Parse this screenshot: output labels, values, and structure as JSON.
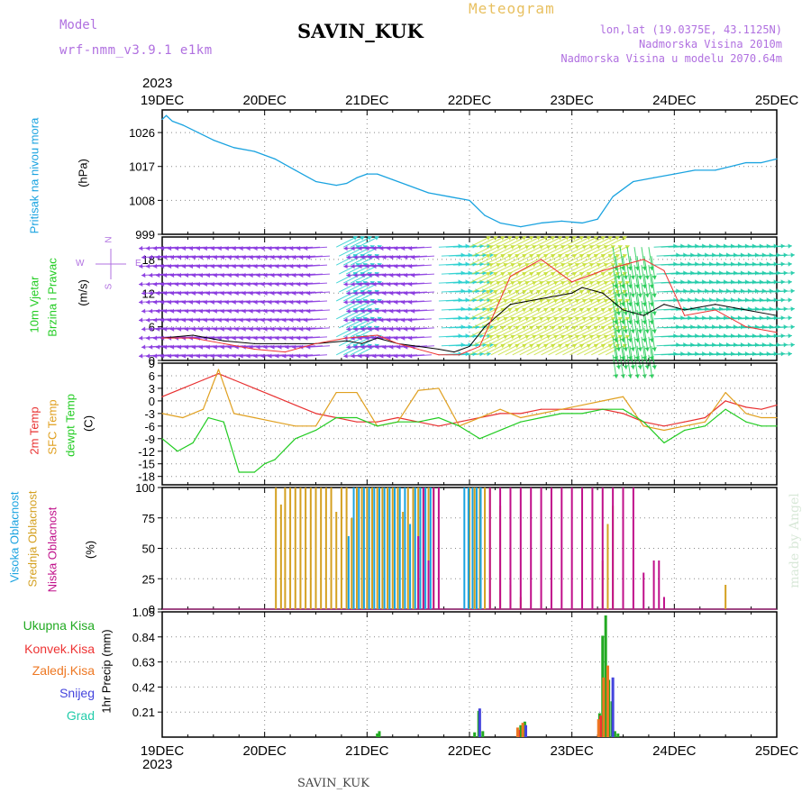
{
  "header": {
    "model_label": "Model",
    "model_name": "wrf-nmm_v3.9.1 e1km",
    "station": "SAVIN_KUK",
    "product": "Meteogram",
    "lonlat": "lon,lat (19.0375E, 43.1125N)",
    "altitude": "Nadmorska Visina 2010m",
    "model_altitude": "Nadmorska Visina u modelu 2070.64m",
    "footer_station": "SAVIN_KUK",
    "watermark": "made by Angel"
  },
  "colors": {
    "pressure": "#1aa3e0",
    "temp2m": "#e83030",
    "sfc": "#e0a020",
    "dewpt": "#22cc22",
    "high_cloud": "#1aa3e0",
    "mid_cloud": "#d4a020",
    "low_cloud": "#c0108a",
    "total_precip": "#22aa22",
    "conv_precip": "#ee3333",
    "frozen_precip": "#ee7722",
    "snow": "#4444dd",
    "hail": "#22ccaa",
    "wind_label": "#22cc22",
    "wind_compass": "#b070e0"
  },
  "chart_data": [
    {
      "id": "pressure",
      "type": "line",
      "ylabel_lines": [
        "Pritisak na nivou mora",
        "(hPa)"
      ],
      "ylim": [
        999,
        1032
      ],
      "yticks": [
        999,
        1008,
        1017,
        1026
      ],
      "x_unit": "days since 2023-12-19 00UTC",
      "series": [
        {
          "x": [
            0,
            0.04,
            0.1,
            0.2,
            0.35,
            0.5,
            0.7,
            0.9,
            1.1,
            1.3,
            1.5,
            1.7,
            1.8,
            1.9,
            2.0,
            2.1,
            2.25,
            2.4,
            2.6,
            2.8,
            3.0,
            3.15,
            3.3,
            3.5,
            3.7,
            3.9,
            4.1,
            4.25,
            4.4,
            4.6,
            4.8,
            5.0,
            5.2,
            5.4,
            5.55,
            5.7,
            5.85,
            6.0
          ],
          "values": [
            1029.5,
            1030.5,
            1029,
            1028,
            1026,
            1024,
            1022,
            1021,
            1019,
            1016,
            1013,
            1012,
            1012.5,
            1014,
            1015,
            1015,
            1013.5,
            1012,
            1010,
            1009,
            1008,
            1004,
            1002,
            1001,
            1002,
            1002.5,
            1002,
            1003,
            1009,
            1013,
            1014,
            1015,
            1016,
            1016,
            1017,
            1018,
            1018,
            1019
          ]
        }
      ]
    },
    {
      "id": "wind",
      "type": "line",
      "ylabel_lines": [
        "10m Vjetar",
        "Brzina i Pravac",
        "(m/s)"
      ],
      "compass": {
        "top": "N",
        "left": "W",
        "right": "E",
        "bottom": "S"
      },
      "ylim": [
        0,
        22
      ],
      "yticks": [
        0,
        6,
        12,
        18
      ],
      "series": [
        {
          "name": "speed",
          "x": [
            0,
            0.3,
            0.6,
            0.9,
            1.2,
            1.5,
            1.8,
            1.95,
            2.1,
            2.3,
            2.5,
            2.7,
            2.85,
            3.0,
            3.15,
            3.4,
            3.7,
            4.0,
            4.1,
            4.3,
            4.5,
            4.7,
            4.9,
            5.1,
            5.4,
            5.7,
            6.0
          ],
          "values": [
            4,
            4.5,
            3.5,
            3,
            3,
            3,
            3.5,
            3,
            4,
            3,
            2.5,
            2,
            1.5,
            2.5,
            6,
            10,
            11,
            12,
            13,
            12,
            9,
            8,
            10,
            9,
            10,
            9,
            8
          ]
        },
        {
          "name": "gust",
          "x": [
            0,
            0.3,
            0.6,
            0.9,
            1.2,
            1.5,
            1.8,
            2.1,
            2.3,
            2.5,
            2.7,
            2.9,
            3.1,
            3.4,
            3.7,
            4.0,
            4.3,
            4.5,
            4.7,
            4.9,
            5.1,
            5.4,
            5.7,
            6.0
          ],
          "values": [
            4,
            4,
            3,
            2,
            1.5,
            3,
            4,
            4.5,
            3,
            2,
            1,
            1,
            2.5,
            15,
            18,
            14,
            16,
            17,
            18,
            16,
            8,
            9,
            6,
            5
          ]
        }
      ],
      "arrow_groups": [
        {
          "x_start": 0.0,
          "x_end": 1.7,
          "dir": "from-east",
          "color": "#8a3ae0"
        },
        {
          "x_start": 1.7,
          "x_end": 2.0,
          "dir": "from-southwest",
          "color": "#2ad0d0"
        },
        {
          "x_start": 2.0,
          "x_end": 2.7,
          "dir": "from-east",
          "color": "#8a3ae0"
        },
        {
          "x_start": 2.7,
          "x_end": 3.0,
          "dir": "from-west",
          "color": "#2ad0d0"
        },
        {
          "x_start": 3.0,
          "x_end": 4.4,
          "dir": "from-southwest",
          "color": "#c8e03a"
        },
        {
          "x_start": 4.4,
          "x_end": 4.8,
          "dir": "from-north",
          "color": "#22cc55"
        },
        {
          "x_start": 4.8,
          "x_end": 6.0,
          "dir": "from-west",
          "color": "#22ccaa"
        }
      ]
    },
    {
      "id": "temperature",
      "type": "line",
      "ylabel_lines": [
        "2m Temp",
        "SFC Temp",
        "dewpt Temp",
        "(C)"
      ],
      "ylim": [
        -20,
        9
      ],
      "yticks": [
        -18,
        -15,
        -12,
        -9,
        -6,
        -3,
        0,
        3,
        6,
        9
      ],
      "series": [
        {
          "name": "2m Temp",
          "x": [
            0,
            0.2,
            0.4,
            0.55,
            0.7,
            0.9,
            1.1,
            1.3,
            1.5,
            1.7,
            1.9,
            2.1,
            2.3,
            2.5,
            2.7,
            2.9,
            3.1,
            3.3,
            3.5,
            3.7,
            3.9,
            4.1,
            4.3,
            4.5,
            4.7,
            4.9,
            5.1,
            5.3,
            5.5,
            5.7,
            5.85,
            6.0
          ],
          "values": [
            1,
            3,
            5,
            6.5,
            5,
            3,
            1,
            -1,
            -3,
            -4,
            -5,
            -5,
            -4,
            -5,
            -6,
            -5,
            -4,
            -3,
            -3,
            -2,
            -2,
            -2,
            -2,
            -3,
            -5,
            -6,
            -5,
            -4,
            0,
            -1.5,
            -2,
            -1
          ]
        },
        {
          "name": "SFC Temp",
          "x": [
            0,
            0.2,
            0.4,
            0.55,
            0.7,
            0.9,
            1.1,
            1.3,
            1.5,
            1.7,
            1.9,
            2.1,
            2.3,
            2.5,
            2.7,
            2.9,
            3.1,
            3.3,
            3.5,
            3.7,
            3.9,
            4.1,
            4.3,
            4.5,
            4.7,
            4.9,
            5.1,
            5.3,
            5.5,
            5.7,
            5.85,
            6.0
          ],
          "values": [
            -3,
            -4,
            -2,
            7.5,
            -3,
            -4,
            -5,
            -6,
            -6,
            2,
            2,
            -6,
            -5,
            2.5,
            3,
            -6,
            -4,
            -2,
            -4,
            -3,
            -2,
            -1,
            0,
            1,
            -6,
            -7,
            -6,
            -5,
            2,
            -3,
            -4,
            -4
          ]
        },
        {
          "name": "dewpt Temp",
          "x": [
            0,
            0.15,
            0.3,
            0.45,
            0.6,
            0.75,
            0.9,
            1.0,
            1.1,
            1.3,
            1.5,
            1.7,
            1.9,
            2.1,
            2.3,
            2.5,
            2.7,
            2.9,
            3.1,
            3.3,
            3.5,
            3.7,
            3.9,
            4.1,
            4.3,
            4.5,
            4.7,
            4.9,
            5.1,
            5.3,
            5.5,
            5.7,
            5.85,
            6.0
          ],
          "values": [
            -9,
            -12,
            -10,
            -4,
            -5,
            -17,
            -17,
            -15,
            -14,
            -9,
            -7,
            -4,
            -4,
            -6,
            -5,
            -5,
            -4,
            -6,
            -9,
            -7,
            -5,
            -4,
            -3,
            -3,
            -2,
            -2,
            -5,
            -10,
            -7,
            -6,
            -2,
            -5,
            -6,
            -6
          ]
        }
      ]
    },
    {
      "id": "clouds",
      "type": "bar",
      "ylabel_lines": [
        "Visoka Oblacnost",
        "Srednja Oblacnost",
        "Niska Oblacnost",
        "(%)"
      ],
      "ylim": [
        0,
        100
      ],
      "yticks": [
        0,
        25,
        50,
        75,
        100
      ],
      "bars": [
        {
          "series": "Srednja Oblacnost",
          "x": [
            1.11,
            1.16,
            1.2,
            1.25,
            1.3,
            1.35,
            1.4,
            1.45,
            1.5,
            1.55,
            1.6,
            1.65,
            1.7,
            1.75,
            1.8,
            1.85,
            1.9,
            1.95,
            2.0,
            2.05,
            2.1,
            2.15,
            2.2,
            2.25,
            2.3,
            2.35,
            2.4,
            2.45,
            2.5,
            2.55,
            2.6,
            2.65,
            3.0,
            3.05,
            3.1,
            3.15,
            3.2,
            3.3,
            3.4,
            3.5,
            4.3,
            4.35,
            4.4,
            5.5
          ],
          "values": [
            100,
            86,
            100,
            100,
            100,
            100,
            100,
            100,
            100,
            100,
            100,
            100,
            80,
            100,
            100,
            75,
            100,
            100,
            100,
            100,
            100,
            100,
            100,
            100,
            100,
            80,
            100,
            100,
            100,
            100,
            100,
            100,
            100,
            100,
            100,
            100,
            100,
            85,
            20,
            10,
            40,
            70,
            85,
            20
          ]
        },
        {
          "series": "Visoka Oblacnost",
          "x": [
            1.82,
            1.87,
            1.92,
            1.97,
            2.02,
            2.07,
            2.12,
            2.17,
            2.22,
            2.27,
            2.32,
            2.37,
            2.42,
            2.47,
            2.52,
            2.57,
            2.62,
            2.95,
            2.99,
            3.03,
            3.07,
            3.11
          ],
          "values": [
            60,
            100,
            100,
            100,
            100,
            100,
            100,
            100,
            100,
            100,
            100,
            100,
            70,
            100,
            100,
            100,
            100,
            100,
            100,
            100,
            100,
            100
          ]
        },
        {
          "series": "Niska Oblacnost",
          "x": [
            2.5,
            2.55,
            2.6,
            2.65,
            2.7,
            3.2,
            3.3,
            3.4,
            3.5,
            3.6,
            3.7,
            3.8,
            3.9,
            4.0,
            4.1,
            4.2,
            4.3,
            4.4,
            4.5,
            4.6,
            4.7,
            4.8,
            4.85,
            4.9
          ],
          "values": [
            60,
            100,
            40,
            100,
            100,
            100,
            100,
            100,
            100,
            100,
            100,
            100,
            100,
            100,
            100,
            100,
            100,
            100,
            100,
            100,
            30,
            40,
            40,
            10
          ]
        }
      ]
    },
    {
      "id": "precip",
      "type": "bar",
      "ylabel_lines": [
        "Ukupna Kisa",
        "Konvek.Kisa",
        "Zaledj.Kisa",
        "Snijeg",
        "Grad",
        "1hr Precip (mm)"
      ],
      "ylim": [
        0,
        1.05
      ],
      "yticks": [
        0.21,
        0.42,
        0.63,
        0.84,
        1.05
      ],
      "bars": [
        {
          "series": "Ukupna Kisa",
          "x": [
            2.1,
            2.12,
            3.05,
            3.09,
            3.13,
            3.5,
            3.54,
            4.27,
            4.3,
            4.33,
            4.36,
            4.39,
            4.42,
            4.45
          ],
          "values": [
            0.03,
            0.05,
            0.04,
            0.22,
            0.05,
            0.1,
            0.13,
            0.2,
            0.85,
            1.02,
            0.48,
            0.3,
            0.05,
            0.03
          ]
        },
        {
          "series": "Konvek.Kisa",
          "x": [
            3.48,
            4.28
          ],
          "values": [
            0.06,
            0.18
          ]
        },
        {
          "series": "Zaledj.Kisa",
          "x": [
            3.47,
            3.52,
            4.26,
            4.31,
            4.35
          ],
          "values": [
            0.08,
            0.12,
            0.15,
            0.5,
            0.6
          ]
        },
        {
          "series": "Snijeg",
          "x": [
            3.1,
            3.55,
            4.4
          ],
          "values": [
            0.24,
            0.1,
            0.5
          ]
        }
      ]
    }
  ],
  "xaxis": {
    "top_year": "2023",
    "bottom_year": "2023",
    "ticks": [
      "19DEC",
      "20DEC",
      "21DEC",
      "22DEC",
      "23DEC",
      "24DEC",
      "25DEC"
    ],
    "xlim": [
      0,
      6
    ]
  }
}
